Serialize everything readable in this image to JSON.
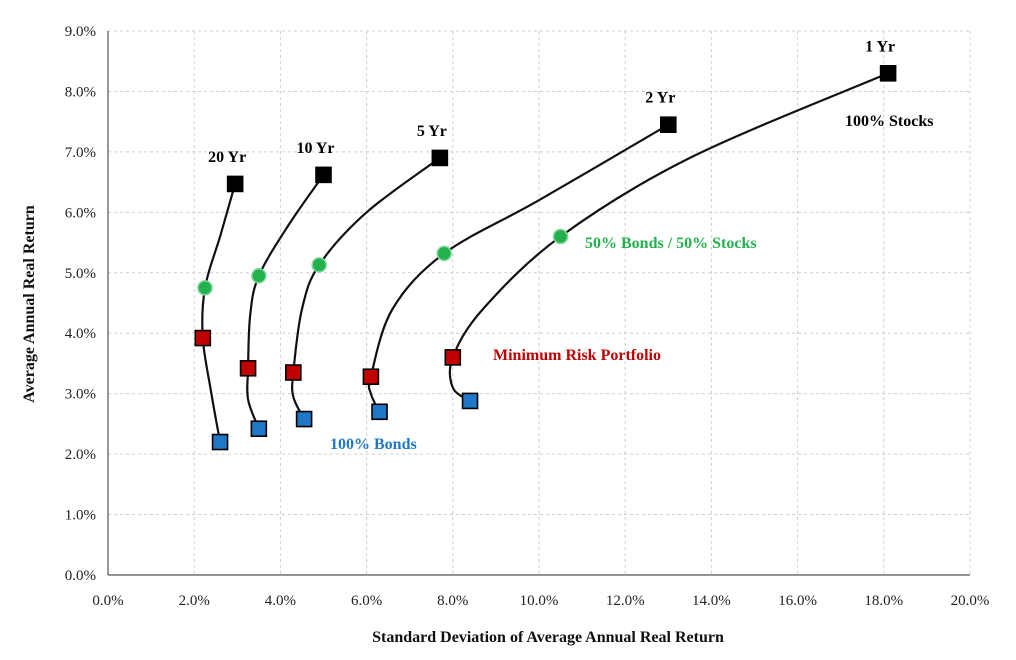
{
  "chart_data": {
    "type": "scatter",
    "xlabel": "Standard  Deviation  of Average  Annual  Real Return",
    "ylabel": "Average  Annual Real Return",
    "xlim": [
      0,
      20
    ],
    "ylim": [
      0,
      9
    ],
    "x_ticks": [
      0,
      2,
      4,
      6,
      8,
      10,
      12,
      14,
      16,
      18,
      20
    ],
    "y_ticks": [
      0,
      1,
      2,
      3,
      4,
      5,
      6,
      7,
      8,
      9
    ],
    "x_tick_labels": [
      "0.0%",
      "2.0%",
      "4.0%",
      "6.0%",
      "8.0%",
      "10.0%",
      "12.0%",
      "14.0%",
      "16.0%",
      "18.0%",
      "20.0%"
    ],
    "y_tick_labels": [
      "0.0%",
      "1.0%",
      "2.0%",
      "3.0%",
      "4.0%",
      "5.0%",
      "6.0%",
      "7.0%",
      "8.0%",
      "9.0%"
    ],
    "grid": true,
    "colors": {
      "stocks": "#000000",
      "mix": "#22b14c",
      "min_risk": "#c00000",
      "bonds": "#1f77c8",
      "curve": "#111111"
    },
    "series": [
      {
        "name": "1 Yr",
        "bonds": [
          8.4,
          2.88
        ],
        "min_risk": [
          8.0,
          3.6
        ],
        "mix": [
          10.5,
          5.6
        ],
        "stocks": [
          18.1,
          8.3
        ],
        "curve": [
          [
            8.4,
            2.88
          ],
          [
            8.0,
            3.1
          ],
          [
            8.0,
            3.6
          ],
          [
            8.7,
            4.4
          ],
          [
            10.5,
            5.6
          ],
          [
            13.5,
            6.9
          ],
          [
            18.1,
            8.3
          ]
        ]
      },
      {
        "name": "2 Yr",
        "bonds": [
          6.3,
          2.7
        ],
        "min_risk": [
          6.1,
          3.28
        ],
        "mix": [
          7.8,
          5.32
        ],
        "stocks": [
          13.0,
          7.45
        ],
        "curve": [
          [
            6.3,
            2.7
          ],
          [
            6.1,
            3.0
          ],
          [
            6.1,
            3.28
          ],
          [
            6.6,
            4.4
          ],
          [
            7.8,
            5.32
          ],
          [
            10.0,
            6.2
          ],
          [
            13.0,
            7.45
          ]
        ]
      },
      {
        "name": "5 Yr",
        "bonds": [
          4.55,
          2.58
        ],
        "min_risk": [
          4.3,
          3.35
        ],
        "mix": [
          4.9,
          5.13
        ],
        "stocks": [
          7.7,
          6.9
        ],
        "curve": [
          [
            4.55,
            2.58
          ],
          [
            4.3,
            2.95
          ],
          [
            4.3,
            3.35
          ],
          [
            4.5,
            4.4
          ],
          [
            4.9,
            5.13
          ],
          [
            6.0,
            6.0
          ],
          [
            7.7,
            6.9
          ]
        ]
      },
      {
        "name": "10 Yr",
        "bonds": [
          3.5,
          2.42
        ],
        "min_risk": [
          3.25,
          3.42
        ],
        "mix": [
          3.5,
          4.95
        ],
        "stocks": [
          5.0,
          6.62
        ],
        "curve": [
          [
            3.5,
            2.42
          ],
          [
            3.25,
            2.9
          ],
          [
            3.25,
            3.42
          ],
          [
            3.3,
            4.3
          ],
          [
            3.5,
            4.95
          ],
          [
            4.2,
            5.8
          ],
          [
            5.0,
            6.62
          ]
        ]
      },
      {
        "name": "20 Yr",
        "bonds": [
          2.6,
          2.2
        ],
        "min_risk": [
          2.2,
          3.92
        ],
        "mix": [
          2.25,
          4.75
        ],
        "stocks": [
          2.95,
          6.47
        ],
        "curve": [
          [
            2.6,
            2.2
          ],
          [
            2.4,
            3.0
          ],
          [
            2.2,
            3.92
          ],
          [
            2.25,
            4.75
          ],
          [
            2.6,
            5.6
          ],
          [
            2.95,
            6.47
          ]
        ]
      }
    ],
    "annotations": {
      "stocks": "100% Stocks",
      "mix": "50% Bonds / 50% Stocks",
      "min_risk": "Minimum  Risk Portfolio",
      "bonds": "100% Bonds"
    }
  }
}
